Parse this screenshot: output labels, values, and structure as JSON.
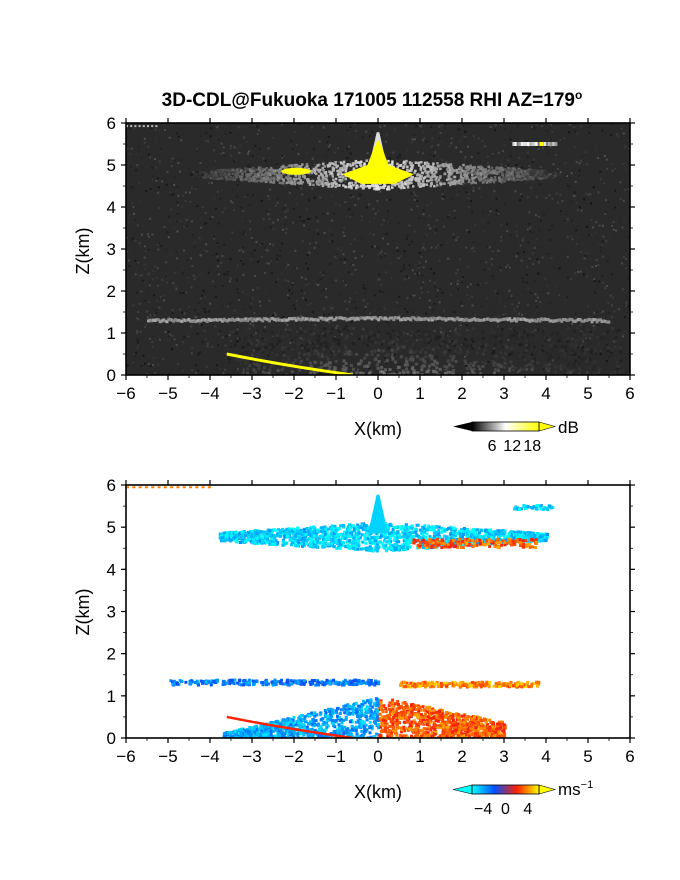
{
  "figure": {
    "title": "3D-CDL@Fukuoka 171005 112558 RHI AZ=179",
    "title_degree": "o"
  },
  "chart_data": [
    {
      "type": "heatmap",
      "panel": "top",
      "xlabel": "X(km)",
      "ylabel": "Z(km)",
      "xlim": [
        -6,
        6
      ],
      "ylim": [
        0,
        6
      ],
      "xticks": [
        "−6",
        "−5",
        "−4",
        "−3",
        "−2",
        "−1",
        "0",
        "1",
        "2",
        "3",
        "4",
        "5",
        "6"
      ],
      "yticks": [
        "0",
        "1",
        "2",
        "3",
        "4",
        "5",
        "6"
      ],
      "colorbar": {
        "unit": "dB",
        "ticks": [
          "6",
          "12",
          "18"
        ],
        "tick_values": [
          6,
          12,
          18
        ],
        "range": [
          0,
          20
        ],
        "colors": [
          "#000000",
          "#ffffff",
          "#ffff00"
        ]
      },
      "background_color": "#2a2a2a",
      "features": [
        {
          "name": "upper cloud layer",
          "x": [
            -4.5,
            4.2
          ],
          "z_center": 4.8,
          "peak_x": 0.0,
          "peak_z": 5.8,
          "intensity_db": 14
        },
        {
          "name": "saturated core",
          "x": [
            -0.9,
            0.9
          ],
          "z": [
            4.5,
            5.5
          ],
          "intensity_db": 20
        },
        {
          "name": "small saturated patch",
          "x": [
            -2.3,
            -1.6
          ],
          "z_center": 4.85,
          "intensity_db": 20
        },
        {
          "name": "isolated echo",
          "x": [
            3.2,
            4.2
          ],
          "z_center": 5.5,
          "intensity_db": 12
        },
        {
          "name": "thin layer",
          "x": [
            -5.5,
            5.5
          ],
          "z_center": 1.38,
          "intensity_db": 9
        },
        {
          "name": "boundary layer",
          "x": [
            -3.5,
            5.8
          ],
          "z": [
            0,
            1.2
          ],
          "intensity_db": 8
        },
        {
          "name": "ground clutter line",
          "x": [
            -3.6,
            -0.6
          ],
          "z": [
            0.5,
            0.0
          ],
          "intensity_db": 20
        }
      ]
    },
    {
      "type": "heatmap",
      "panel": "bottom",
      "xlabel": "X(km)",
      "ylabel": "Z(km)",
      "xlim": [
        -6,
        6
      ],
      "ylim": [
        0,
        6
      ],
      "xticks": [
        "−6",
        "−5",
        "−4",
        "−3",
        "−2",
        "−1",
        "0",
        "1",
        "2",
        "3",
        "4",
        "5",
        "6"
      ],
      "yticks": [
        "0",
        "1",
        "2",
        "3",
        "4",
        "5",
        "6"
      ],
      "colorbar": {
        "unit": "ms",
        "unit_exponent": "−1",
        "ticks": [
          "−4",
          "0",
          "4"
        ],
        "tick_values": [
          -4,
          0,
          4
        ],
        "range": [
          -6,
          6
        ],
        "colors": [
          "#00ffff",
          "#0050ff",
          "#ff2000",
          "#ffff00"
        ]
      },
      "background_color": "#ffffff",
      "features": [
        {
          "name": "upper cloud layer",
          "x": [
            -3.8,
            4.0
          ],
          "z_center": 4.8,
          "velocity_ms": -5
        },
        {
          "name": "receding edges",
          "x": [
            0.8,
            3.8
          ],
          "z_center": 4.65,
          "velocity_ms": 3
        },
        {
          "name": "isolated echo",
          "x": [
            3.2,
            4.2
          ],
          "z_center": 5.5,
          "velocity_ms": -5
        },
        {
          "name": "thin layer west",
          "x": [
            -5.0,
            0.0
          ],
          "z_center": 1.35,
          "velocity_ms": -3
        },
        {
          "name": "thin layer east",
          "x": [
            0.5,
            3.8
          ],
          "z_center": 1.3,
          "velocity_ms": 4
        },
        {
          "name": "boundary layer west",
          "x": [
            -3.7,
            0.0
          ],
          "z": [
            0,
            1.0
          ],
          "velocity_ms": -4
        },
        {
          "name": "boundary layer east",
          "x": [
            0.0,
            3.0
          ],
          "z": [
            0,
            1.0
          ],
          "velocity_ms": 3
        }
      ]
    }
  ]
}
